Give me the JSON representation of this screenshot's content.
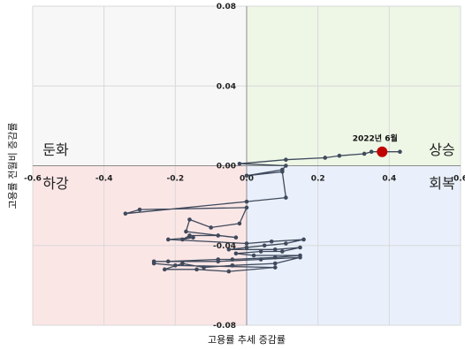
{
  "chart_data": {
    "type": "scatter",
    "title": "",
    "xlabel": "고용률 추세 증감률",
    "ylabel": "고용률 전월비 증감률",
    "xlim": [
      -0.6,
      0.6
    ],
    "ylim": [
      -0.08,
      0.08
    ],
    "x_ticks": [
      {
        "value": -0.6,
        "label": "-0.6"
      },
      {
        "value": -0.4,
        "label": "-0.4"
      },
      {
        "value": -0.2,
        "label": "-0.2"
      },
      {
        "value": 0.0,
        "label": "0.0"
      },
      {
        "value": 0.2,
        "label": "0.2"
      },
      {
        "value": 0.4,
        "label": "0.4"
      },
      {
        "value": 0.6,
        "label": "0.6"
      }
    ],
    "y_ticks": [
      {
        "value": 0.08,
        "label": "0.08"
      },
      {
        "value": 0.04,
        "label": "0.04"
      },
      {
        "value": 0.0,
        "label": "0.00"
      },
      {
        "value": -0.04,
        "label": "-0.04"
      },
      {
        "value": -0.08,
        "label": "-0.08"
      }
    ],
    "grid": true,
    "quadrants": [
      {
        "name": "둔화",
        "color": "#f7f7f7"
      },
      {
        "name": "상승",
        "color": "#eef6e6"
      },
      {
        "name": "하강",
        "color": "#fbe6e6"
      },
      {
        "name": "회복",
        "color": "#e9f0fb"
      }
    ],
    "series": [
      {
        "color": "#3f4a5c",
        "points": [
          [
            0.43,
            0.007
          ],
          [
            0.38,
            0.007
          ],
          [
            0.35,
            0.007
          ],
          [
            0.33,
            0.006
          ],
          [
            0.26,
            0.005
          ],
          [
            0.22,
            0.004
          ],
          [
            0.11,
            0.003
          ],
          [
            -0.02,
            0.001
          ],
          [
            0.11,
            0.0
          ],
          [
            0.1,
            -0.002
          ],
          [
            0.0,
            -0.005
          ],
          [
            0.1,
            -0.003
          ],
          [
            0.11,
            -0.016
          ],
          [
            0.0,
            -0.018
          ],
          [
            -0.34,
            -0.024
          ],
          [
            -0.3,
            -0.022
          ],
          [
            0.0,
            -0.021
          ],
          [
            -0.02,
            -0.029
          ],
          [
            -0.1,
            -0.031
          ],
          [
            -0.16,
            -0.027
          ],
          [
            -0.17,
            -0.033
          ],
          [
            -0.03,
            -0.036
          ],
          [
            -0.08,
            -0.035
          ],
          [
            -0.16,
            -0.035
          ],
          [
            -0.18,
            -0.037
          ],
          [
            -0.15,
            -0.036
          ],
          [
            -0.22,
            -0.037
          ],
          [
            0.0,
            -0.039
          ],
          [
            0.07,
            -0.038
          ],
          [
            0.16,
            -0.037
          ],
          [
            0.11,
            -0.039
          ],
          [
            0.05,
            -0.04
          ],
          [
            0.0,
            -0.041
          ],
          [
            -0.05,
            -0.042
          ],
          [
            0.08,
            -0.042
          ],
          [
            0.15,
            -0.041
          ],
          [
            0.1,
            -0.043
          ],
          [
            0.04,
            -0.043
          ],
          [
            -0.03,
            -0.044
          ],
          [
            0.02,
            -0.045
          ],
          [
            0.15,
            -0.045
          ],
          [
            0.08,
            -0.046
          ],
          [
            -0.04,
            -0.047
          ],
          [
            -0.08,
            -0.047
          ],
          [
            -0.22,
            -0.048
          ],
          [
            -0.26,
            -0.048
          ],
          [
            -0.08,
            -0.048
          ],
          [
            0.04,
            -0.047
          ],
          [
            0.15,
            -0.046
          ],
          [
            0.08,
            -0.049
          ],
          [
            -0.04,
            -0.05
          ],
          [
            -0.12,
            -0.051
          ],
          [
            -0.18,
            -0.049
          ],
          [
            -0.23,
            -0.052
          ],
          [
            -0.14,
            -0.052
          ],
          [
            -0.05,
            -0.053
          ],
          [
            0.08,
            -0.051
          ],
          [
            -0.2,
            -0.05
          ],
          [
            -0.26,
            -0.049
          ]
        ]
      }
    ],
    "highlight": {
      "x": 0.38,
      "y": 0.007,
      "label": "2022년 6월",
      "color": "#c00000"
    }
  }
}
